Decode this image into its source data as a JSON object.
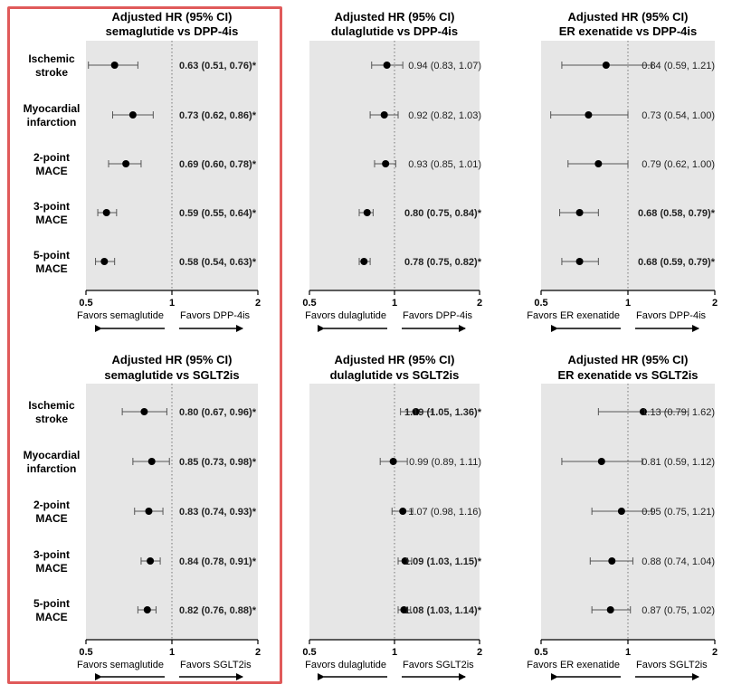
{
  "colors": {
    "panel_bg": "#e6e6e6",
    "highlight_border": "#e05a5a",
    "marker": "#000000",
    "ci_line": "#555555"
  },
  "row_labels": [
    [
      "Ischemic",
      "stroke"
    ],
    [
      "Myocardial",
      "infarction"
    ],
    [
      "2-point",
      "MACE"
    ],
    [
      "3-point",
      "MACE"
    ],
    [
      "5-point",
      "MACE"
    ]
  ],
  "chart_data": [
    {
      "type": "forest",
      "scale": "log",
      "xlim": [
        0.5,
        2
      ],
      "ticks": [
        "0.5",
        "1",
        "2"
      ],
      "ref_line": 1,
      "title": [
        "Adjusted HR (95% CI)",
        "semaglutide vs DPP-4is"
      ],
      "favors_left": "Favors semaglutide",
      "favors_right": "Favors DPP-4is",
      "rows": [
        {
          "hr": 0.63,
          "lo": 0.51,
          "hi": 0.76,
          "label": "0.63 (0.51, 0.76)*",
          "bold": true
        },
        {
          "hr": 0.73,
          "lo": 0.62,
          "hi": 0.86,
          "label": "0.73 (0.62, 0.86)*",
          "bold": true
        },
        {
          "hr": 0.69,
          "lo": 0.6,
          "hi": 0.78,
          "label": "0.69 (0.60, 0.78)*",
          "bold": true
        },
        {
          "hr": 0.59,
          "lo": 0.55,
          "hi": 0.64,
          "label": "0.59 (0.55, 0.64)*",
          "bold": true
        },
        {
          "hr": 0.58,
          "lo": 0.54,
          "hi": 0.63,
          "label": "0.58 (0.54, 0.63)*",
          "bold": true
        }
      ]
    },
    {
      "type": "forest",
      "scale": "log",
      "xlim": [
        0.5,
        2
      ],
      "ticks": [
        "0.5",
        "1",
        "2"
      ],
      "ref_line": 1,
      "title": [
        "Adjusted HR (95% CI)",
        "dulaglutide vs DPP-4is"
      ],
      "favors_left": "Favors dulaglutide",
      "favors_right": "Favors DPP-4is",
      "rows": [
        {
          "hr": 0.94,
          "lo": 0.83,
          "hi": 1.07,
          "label": "0.94 (0.83, 1.07)",
          "bold": false
        },
        {
          "hr": 0.92,
          "lo": 0.82,
          "hi": 1.03,
          "label": "0.92 (0.82, 1.03)",
          "bold": false
        },
        {
          "hr": 0.93,
          "lo": 0.85,
          "hi": 1.01,
          "label": "0.93 (0.85, 1.01)",
          "bold": false
        },
        {
          "hr": 0.8,
          "lo": 0.75,
          "hi": 0.84,
          "label": "0.80 (0.75, 0.84)*",
          "bold": true
        },
        {
          "hr": 0.78,
          "lo": 0.75,
          "hi": 0.82,
          "label": "0.78 (0.75, 0.82)*",
          "bold": true
        }
      ]
    },
    {
      "type": "forest",
      "scale": "log",
      "xlim": [
        0.5,
        2
      ],
      "ticks": [
        "0.5",
        "1",
        "2"
      ],
      "ref_line": 1,
      "title": [
        "Adjusted HR  (95% CI)",
        "ER exenatide vs DPP-4is"
      ],
      "favors_left": "Favors ER exenatide",
      "favors_right": "Favors DPP-4is",
      "rows": [
        {
          "hr": 0.84,
          "lo": 0.59,
          "hi": 1.21,
          "label": "0.84 (0.59, 1.21)",
          "bold": false
        },
        {
          "hr": 0.73,
          "lo": 0.54,
          "hi": 1.0,
          "label": "0.73 (0.54, 1.00)",
          "bold": false
        },
        {
          "hr": 0.79,
          "lo": 0.62,
          "hi": 1.0,
          "label": "0.79 (0.62, 1.00)",
          "bold": false
        },
        {
          "hr": 0.68,
          "lo": 0.58,
          "hi": 0.79,
          "label": "0.68 (0.58, 0.79)*",
          "bold": true
        },
        {
          "hr": 0.68,
          "lo": 0.59,
          "hi": 0.79,
          "label": "0.68 (0.59, 0.79)*",
          "bold": true
        }
      ]
    },
    {
      "type": "forest",
      "scale": "log",
      "xlim": [
        0.5,
        2
      ],
      "ticks": [
        "0.5",
        "1",
        "2"
      ],
      "ref_line": 1,
      "title": [
        "Adjusted HR (95% CI)",
        "semaglutide vs SGLT2is"
      ],
      "favors_left": "Favors semaglutide",
      "favors_right": "Favors SGLT2is",
      "rows": [
        {
          "hr": 0.8,
          "lo": 0.67,
          "hi": 0.96,
          "label": "0.80 (0.67, 0.96)*",
          "bold": true
        },
        {
          "hr": 0.85,
          "lo": 0.73,
          "hi": 0.98,
          "label": "0.85 (0.73, 0.98)*",
          "bold": true
        },
        {
          "hr": 0.83,
          "lo": 0.74,
          "hi": 0.93,
          "label": "0.83 (0.74, 0.93)*",
          "bold": true
        },
        {
          "hr": 0.84,
          "lo": 0.78,
          "hi": 0.91,
          "label": "0.84 (0.78, 0.91)*",
          "bold": true
        },
        {
          "hr": 0.82,
          "lo": 0.76,
          "hi": 0.88,
          "label": "0.82 (0.76, 0.88)*",
          "bold": true
        }
      ]
    },
    {
      "type": "forest",
      "scale": "log",
      "xlim": [
        0.5,
        2
      ],
      "ticks": [
        "0.5",
        "1",
        "2"
      ],
      "ref_line": 1,
      "title": [
        "Adjusted HR (95% CI)",
        "dulaglutide vs SGLT2is"
      ],
      "favors_left": "Favors dulaglutide",
      "favors_right": "Favors SGLT2is",
      "rows": [
        {
          "hr": 1.19,
          "lo": 1.05,
          "hi": 1.36,
          "label": "1.19 (1.05, 1.36)*",
          "bold": true
        },
        {
          "hr": 0.99,
          "lo": 0.89,
          "hi": 1.11,
          "label": "0.99 (0.89, 1.11)",
          "bold": false
        },
        {
          "hr": 1.07,
          "lo": 0.98,
          "hi": 1.16,
          "label": "1.07 (0.98, 1.16)",
          "bold": false
        },
        {
          "hr": 1.09,
          "lo": 1.03,
          "hi": 1.15,
          "label": "1.09 (1.03, 1.15)*",
          "bold": true
        },
        {
          "hr": 1.08,
          "lo": 1.03,
          "hi": 1.14,
          "label": "1.08 (1.03, 1.14)*",
          "bold": true
        }
      ]
    },
    {
      "type": "forest",
      "scale": "log",
      "xlim": [
        0.5,
        2
      ],
      "ticks": [
        "0.5",
        "1",
        "2"
      ],
      "ref_line": 1,
      "title": [
        "Adjusted HR (95% CI)",
        "ER exenatide vs SGLT2is"
      ],
      "favors_left": "Favors ER exenatide",
      "favors_right": "Favors SGLT2is",
      "rows": [
        {
          "hr": 1.13,
          "lo": 0.79,
          "hi": 1.62,
          "label": "1.13 (0.79, 1.62)",
          "bold": false
        },
        {
          "hr": 0.81,
          "lo": 0.59,
          "hi": 1.12,
          "label": "0.81 (0.59, 1.12)",
          "bold": false
        },
        {
          "hr": 0.95,
          "lo": 0.75,
          "hi": 1.21,
          "label": "0.95 (0.75, 1.21)",
          "bold": false
        },
        {
          "hr": 0.88,
          "lo": 0.74,
          "hi": 1.04,
          "label": "0.88 (0.74, 1.04)",
          "bold": false
        },
        {
          "hr": 0.87,
          "lo": 0.75,
          "hi": 1.02,
          "label": "0.87 (0.75, 1.02)",
          "bold": false
        }
      ]
    }
  ]
}
